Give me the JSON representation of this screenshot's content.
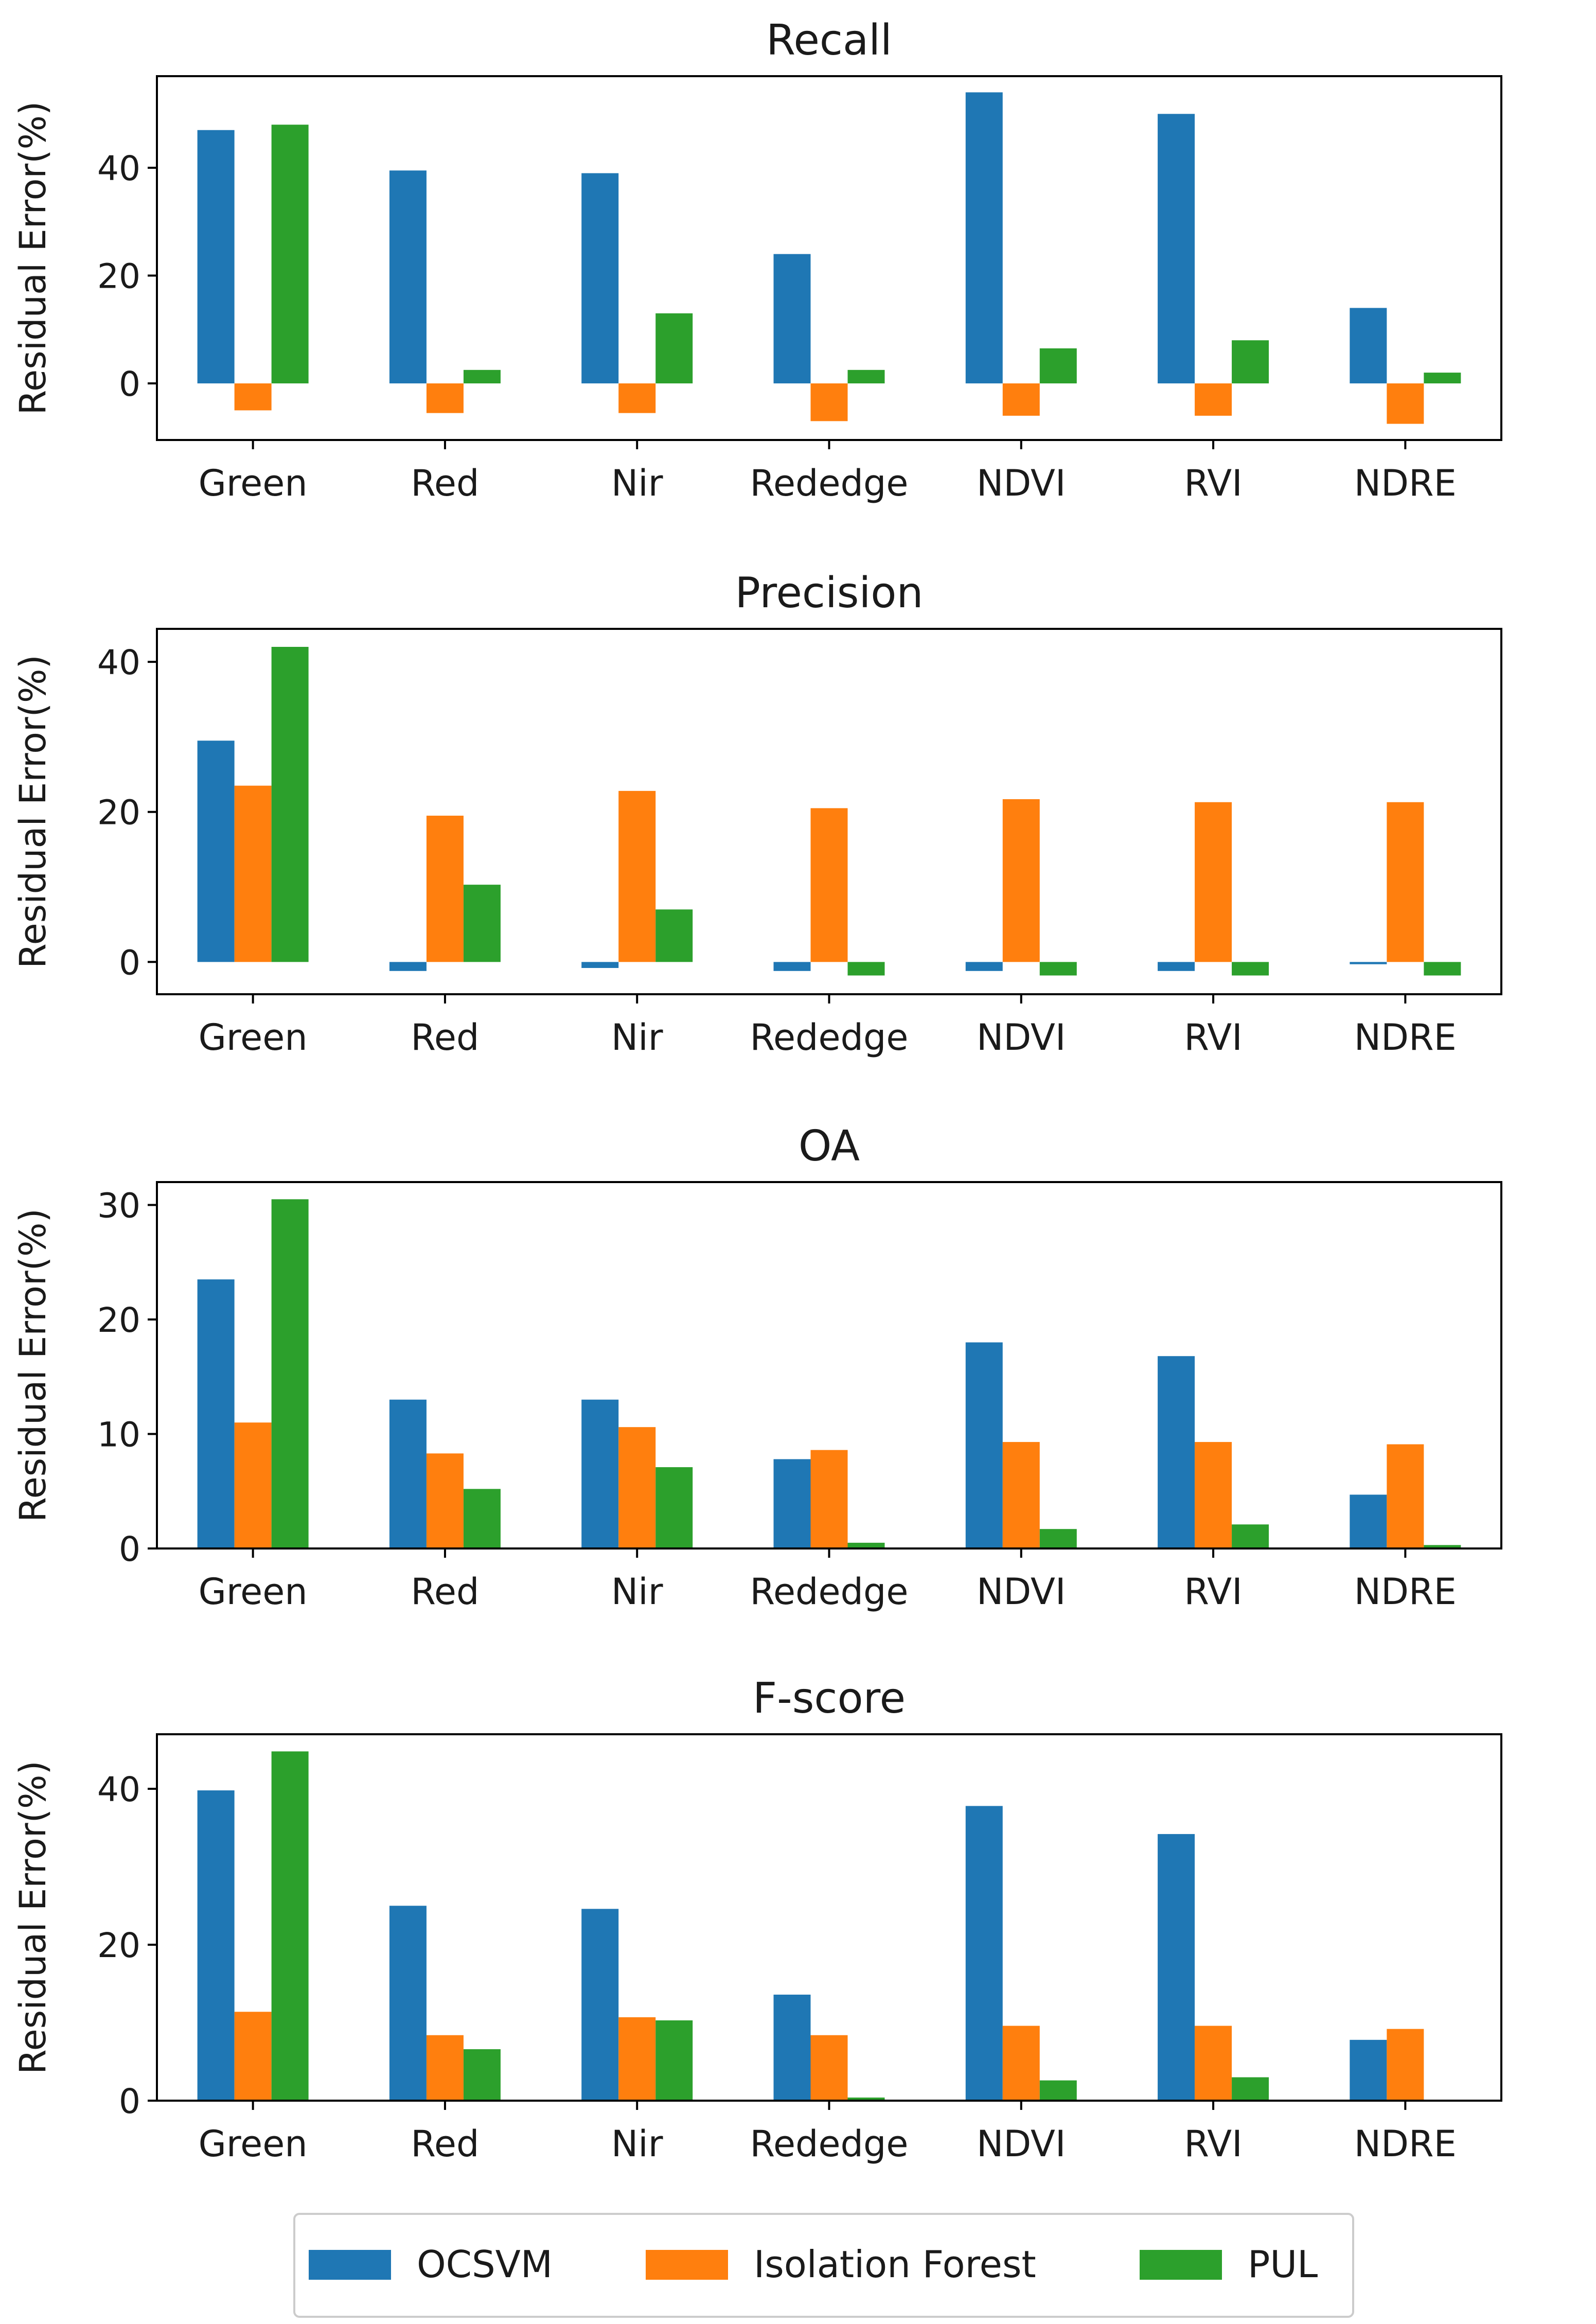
{
  "colors": {
    "OCSVM": "#1f77b4",
    "Isolation Forest": "#ff7f0e",
    "PUL": "#2ca02c"
  },
  "legend": {
    "items": [
      "OCSVM",
      "Isolation Forest",
      "PUL"
    ],
    "placement": "bottom-center"
  },
  "chart_data": [
    {
      "type": "bar",
      "title": "Recall",
      "ylabel": "Residual Error(%)",
      "xlabel": "",
      "categories": [
        "Green",
        "Red",
        "Nir",
        "Rededge",
        "NDVI",
        "RVI",
        "NDRE"
      ],
      "ylim": [
        -10.5,
        57
      ],
      "yticks": [
        0,
        20,
        40
      ],
      "series": [
        {
          "name": "OCSVM",
          "values": [
            47,
            39.5,
            39,
            24,
            54,
            50,
            14
          ]
        },
        {
          "name": "Isolation Forest",
          "values": [
            -5,
            -5.5,
            -5.5,
            -7,
            -6,
            -6,
            -7.5
          ]
        },
        {
          "name": "PUL",
          "values": [
            48,
            2.5,
            13,
            2.5,
            6.5,
            8,
            2
          ]
        }
      ]
    },
    {
      "type": "bar",
      "title": "Precision",
      "ylabel": "Residual Error(%)",
      "xlabel": "",
      "categories": [
        "Green",
        "Red",
        "Nir",
        "Rededge",
        "NDVI",
        "RVI",
        "NDRE"
      ],
      "ylim": [
        -4.3,
        44.4
      ],
      "yticks": [
        0,
        20,
        40
      ],
      "series": [
        {
          "name": "OCSVM",
          "values": [
            29.5,
            -1.2,
            -0.8,
            -1.2,
            -1.2,
            -1.2,
            -0.3
          ]
        },
        {
          "name": "Isolation Forest",
          "values": [
            23.5,
            19.5,
            22.8,
            20.5,
            21.7,
            21.3,
            21.3
          ]
        },
        {
          "name": "PUL",
          "values": [
            42,
            10.3,
            7,
            -1.8,
            -1.8,
            -1.8,
            -1.8
          ]
        }
      ]
    },
    {
      "type": "bar",
      "title": "OA",
      "ylabel": "Residual Error(%)",
      "xlabel": "",
      "categories": [
        "Green",
        "Red",
        "Nir",
        "Rededge",
        "NDVI",
        "RVI",
        "NDRE"
      ],
      "ylim": [
        0,
        32
      ],
      "yticks": [
        0,
        10,
        20,
        30
      ],
      "series": [
        {
          "name": "OCSVM",
          "values": [
            23.5,
            13,
            13,
            7.8,
            18,
            16.8,
            4.7
          ]
        },
        {
          "name": "Isolation Forest",
          "values": [
            11,
            8.3,
            10.6,
            8.6,
            9.3,
            9.3,
            9.1
          ]
        },
        {
          "name": "PUL",
          "values": [
            30.5,
            5.2,
            7.1,
            0.5,
            1.7,
            2.1,
            0.3
          ]
        }
      ]
    },
    {
      "type": "bar",
      "title": "F-score",
      "ylabel": "Residual Error(%)",
      "xlabel": "",
      "categories": [
        "Green",
        "Red",
        "Nir",
        "Rededge",
        "NDVI",
        "RVI",
        "NDRE"
      ],
      "ylim": [
        0,
        47
      ],
      "yticks": [
        0,
        20,
        40
      ],
      "series": [
        {
          "name": "OCSVM",
          "values": [
            39.8,
            25,
            24.6,
            13.6,
            37.8,
            34.2,
            7.8
          ]
        },
        {
          "name": "Isolation Forest",
          "values": [
            11.4,
            8.4,
            10.7,
            8.4,
            9.6,
            9.6,
            9.2
          ]
        },
        {
          "name": "PUL",
          "values": [
            44.8,
            6.6,
            10.3,
            0.4,
            2.6,
            3,
            0
          ]
        }
      ]
    }
  ]
}
